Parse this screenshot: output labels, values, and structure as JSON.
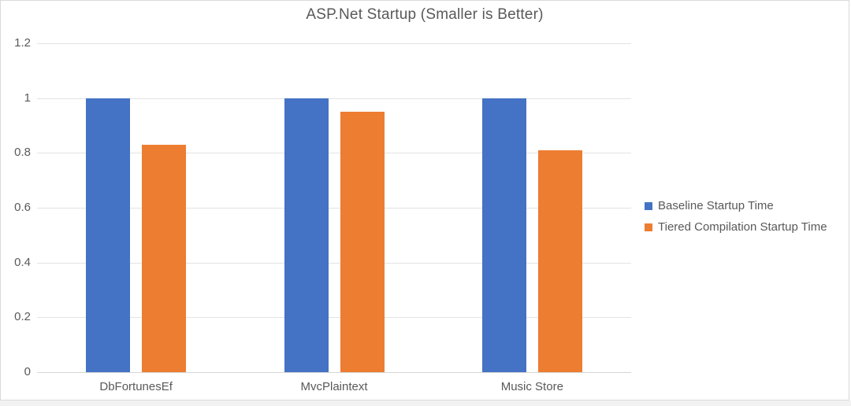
{
  "chart_data": {
    "type": "bar",
    "title": "ASP.Net Startup (Smaller is Better)",
    "categories": [
      "DbFortunesEf",
      "MvcPlaintext",
      "Music Store"
    ],
    "series": [
      {
        "name": "Baseline Startup Time",
        "color": "#4472C4",
        "values": [
          1.0,
          1.0,
          1.0
        ]
      },
      {
        "name": "Tiered Compilation Startup Time",
        "color": "#ED7D31",
        "values": [
          0.83,
          0.95,
          0.81
        ]
      }
    ],
    "xlabel": "",
    "ylabel": "",
    "ylim": [
      0,
      1.2
    ],
    "ytick_interval": 0.2,
    "ytick_labels": [
      "0",
      "0.2",
      "0.4",
      "0.6",
      "0.8",
      "1",
      "1.2"
    ],
    "grid": true,
    "legend_position": "right"
  },
  "colors": {
    "series_baseline": "#4472C4",
    "series_tiered": "#ED7D31",
    "gridline": "#E3E3E3",
    "axis_line": "#D6D6D6",
    "text": "#595959",
    "frame_border": "#D9D9D9",
    "background": "#FFFFFF",
    "page_strip": "#F2F2F2"
  }
}
